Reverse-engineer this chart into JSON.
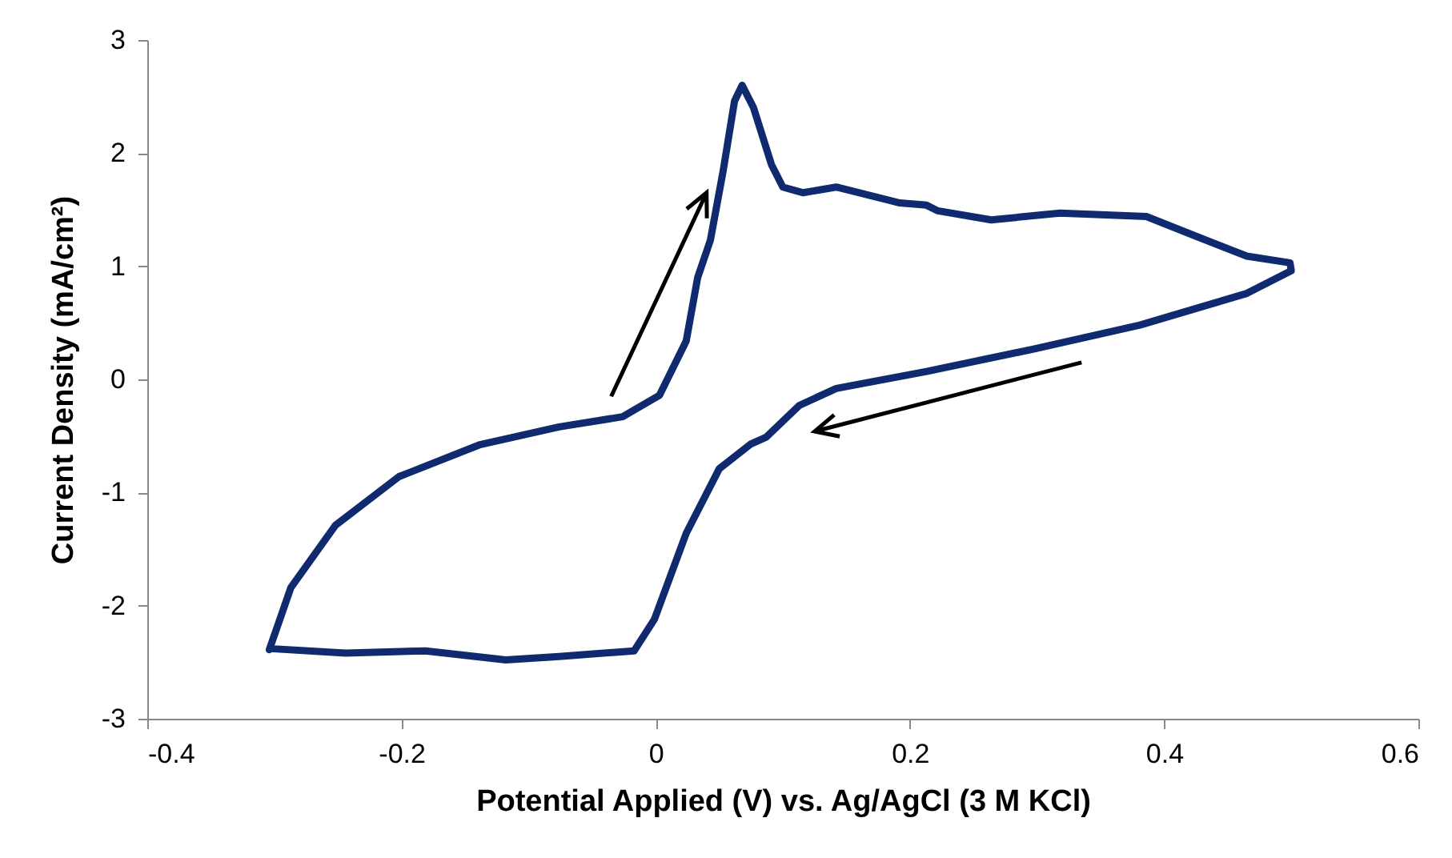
{
  "chart_data": {
    "type": "line",
    "xlabel": "Potential Applied (V) vs. Ag/AgCl (3 M KCl)",
    "ylabel": "Current Density (mA/cm²)",
    "x": [
      -0.304,
      -0.287,
      -0.252,
      -0.202,
      -0.139,
      -0.076,
      -0.026,
      0.003,
      0.024,
      0.033,
      0.043,
      0.053,
      0.062,
      0.068,
      0.077,
      0.091,
      0.1,
      0.116,
      0.142,
      0.192,
      0.213,
      0.222,
      0.264,
      0.318,
      0.386,
      0.424,
      0.465,
      0.499,
      0.5,
      0.465,
      0.381,
      0.298,
      0.213,
      0.142,
      0.113,
      0.087,
      0.075,
      0.05,
      0.024,
      -0.001,
      -0.017,
      -0.076,
      -0.118,
      -0.181,
      -0.244,
      -0.303
    ],
    "values": [
      -2.39,
      -1.84,
      -1.29,
      -0.86,
      -0.58,
      -0.42,
      -0.33,
      -0.14,
      0.34,
      0.9,
      1.23,
      1.84,
      2.46,
      2.6,
      2.4,
      1.9,
      1.7,
      1.65,
      1.7,
      1.56,
      1.54,
      1.49,
      1.41,
      1.47,
      1.44,
      1.27,
      1.09,
      1.03,
      0.96,
      0.76,
      0.48,
      0.27,
      0.07,
      -0.08,
      -0.23,
      -0.51,
      -0.57,
      -0.79,
      -1.36,
      -2.12,
      -2.4,
      -2.45,
      -2.48,
      -2.4,
      -2.42,
      -2.38
    ],
    "color": "#0f2a6e",
    "xlim": [
      -0.4,
      0.6
    ],
    "ylim": [
      -3,
      3
    ],
    "xticks": [
      -0.4,
      -0.2,
      0,
      0.2,
      0.4,
      0.6
    ],
    "yticks": [
      -3,
      -2,
      -1,
      0,
      1,
      2,
      3
    ]
  }
}
